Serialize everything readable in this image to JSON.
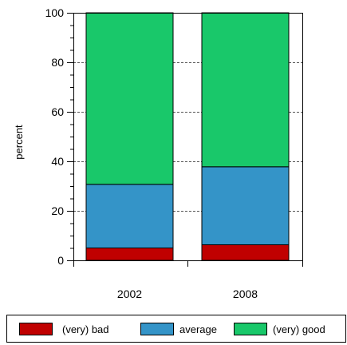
{
  "chart_data": {
    "type": "bar",
    "stacked": true,
    "categories": [
      "2002",
      "2008"
    ],
    "series": [
      {
        "name": "(very) bad",
        "values": [
          5,
          6.3
        ],
        "color": "#c00000"
      },
      {
        "name": "average",
        "values": [
          25.7,
          31.5
        ],
        "color": "#3494c8"
      },
      {
        "name": "(very) good",
        "values": [
          69.3,
          62.2
        ],
        "color": "#19c86a"
      }
    ],
    "xlabel": "",
    "ylabel": "percent",
    "ylim": [
      0,
      100
    ],
    "yticks": [
      0,
      20,
      40,
      60,
      80,
      100
    ],
    "grid": "horizontal dotted",
    "legend_position": "bottom"
  }
}
